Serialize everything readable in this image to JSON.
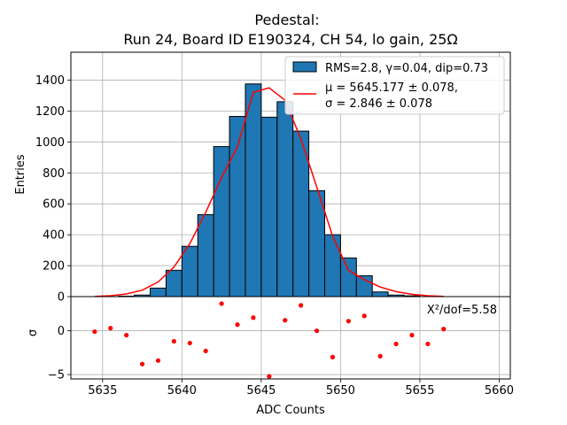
{
  "chart_data": [
    {
      "type": "bar",
      "panel": "histogram",
      "title": "Pedestal:\nRun 24, Board ID E190324, CH 54, lo gain, 25Ω",
      "title_lines": [
        "Pedestal:",
        "Run 24, Board ID E190324, CH 54, lo gain, 25Ω"
      ],
      "xlabel": "",
      "ylabel": "Entries",
      "xlim": [
        5633,
        5660.7
      ],
      "ylim": [
        0,
        1580
      ],
      "yticks": [
        0,
        200,
        400,
        600,
        800,
        1000,
        1200,
        1400
      ],
      "grid": true,
      "legend_position": "top-right",
      "bin_width": 1,
      "bin_centers": [
        5636.5,
        5637.5,
        5638.5,
        5639.5,
        5640.5,
        5641.5,
        5642.5,
        5643.5,
        5644.5,
        5645.5,
        5646.5,
        5647.5,
        5648.5,
        5649.5,
        5650.5,
        5651.5,
        5652.5,
        5653.5,
        5654.5
      ],
      "series": [
        {
          "name": "RMS=2.8, γ=0.04, dip=0.73",
          "kind": "histogram",
          "color": "#1f77b4",
          "values": [
            3,
            10,
            55,
            170,
            325,
            530,
            970,
            1165,
            1375,
            1160,
            1260,
            1070,
            685,
            400,
            250,
            135,
            30,
            10,
            5
          ]
        },
        {
          "name": "μ = 5645.177 ± 0.078,",
          "name_line2": "σ = 2.846 ± 0.078",
          "kind": "gaussian-fit",
          "color": "#ff0000",
          "x": [
            5634.5,
            5635.5,
            5636.5,
            5637.5,
            5638.5,
            5639.5,
            5640.5,
            5641.5,
            5642.5,
            5643.5,
            5644.5,
            5645.5,
            5646.5,
            5647.5,
            5648.5,
            5649.5,
            5650.5,
            5651.5,
            5652.5,
            5653.5,
            5654.5,
            5655.5,
            5656.5
          ],
          "values": [
            2,
            6,
            17,
            42,
            95,
            192,
            343,
            545,
            770,
            968,
            1320,
            1350,
            1270,
            1020,
            710,
            390,
            170,
            110,
            62,
            32,
            15,
            6,
            2
          ]
        }
      ]
    },
    {
      "type": "scatter",
      "panel": "residuals",
      "xlabel": "ADC Counts",
      "ylabel": "σ",
      "xlim": [
        5633,
        5660.7
      ],
      "ylim": [
        -5.5,
        3.9
      ],
      "xticks": [
        5635,
        5640,
        5645,
        5650,
        5655,
        5660
      ],
      "yticks": [
        -5,
        0
      ],
      "grid": true,
      "annotation": "X²/dof=5.58",
      "series": [
        {
          "name": "",
          "color": "#ff0000",
          "x": [
            5634.5,
            5635.5,
            5636.5,
            5637.5,
            5638.5,
            5639.5,
            5640.5,
            5641.5,
            5642.5,
            5643.5,
            5644.5,
            5645.5,
            5646.5,
            5647.5,
            5648.5,
            5649.5,
            5650.5,
            5651.5,
            5652.5,
            5653.5,
            5654.5,
            5655.5,
            5656.5
          ],
          "values": [
            -0.1,
            0.3,
            -0.5,
            -3.8,
            -3.4,
            -1.2,
            -1.4,
            -2.3,
            3.1,
            0.7,
            1.5,
            -5.2,
            1.2,
            2.9,
            0.0,
            -3.0,
            1.1,
            1.7,
            -2.9,
            -1.5,
            -0.5,
            -1.5,
            0.2
          ]
        }
      ]
    }
  ]
}
